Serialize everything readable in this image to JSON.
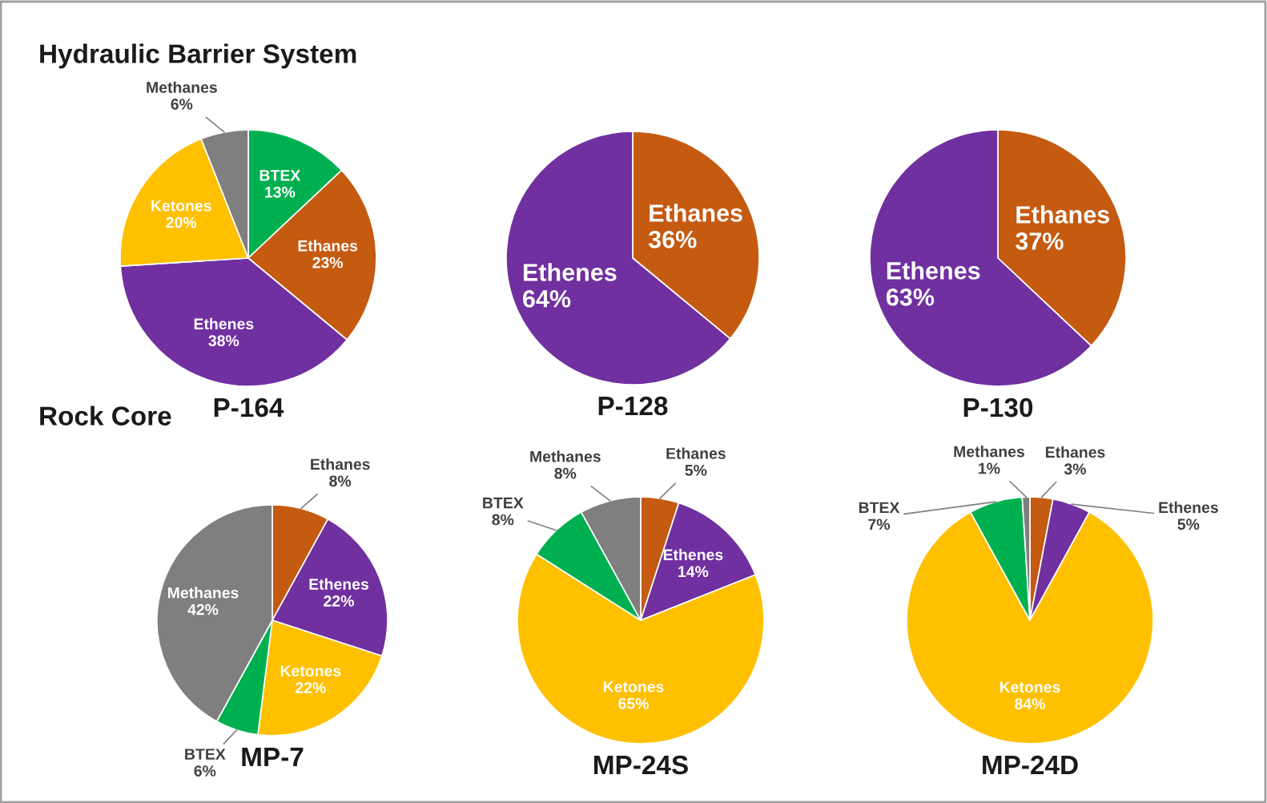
{
  "chart_data": [
    {
      "type": "pie",
      "title": "P-164",
      "categories": [
        "BTEX",
        "Ethanes",
        "Ethenes",
        "Ketones",
        "Methanes"
      ],
      "values": [
        13,
        23,
        38,
        20,
        6
      ],
      "colors": [
        "#00b050",
        "#c55a11",
        "#7030a0",
        "#ffc000",
        "#7f7f7f"
      ],
      "value_labels": [
        "13%",
        "23%",
        "38%",
        "20%",
        "6%"
      ],
      "annotations": [
        "Hydraulic Barrier System"
      ]
    },
    {
      "type": "pie",
      "title": "P-128",
      "categories": [
        "Ethanes",
        "Ethenes"
      ],
      "values": [
        36,
        64
      ],
      "colors": [
        "#c55a11",
        "#7030a0"
      ],
      "value_labels": [
        "36%",
        "64%"
      ]
    },
    {
      "type": "pie",
      "title": "P-130",
      "categories": [
        "Ethanes",
        "Ethenes"
      ],
      "values": [
        37,
        63
      ],
      "colors": [
        "#c55a11",
        "#7030a0"
      ],
      "value_labels": [
        "37%",
        "63%"
      ]
    },
    {
      "type": "pie",
      "title": "MP-7",
      "categories": [
        "Ethanes",
        "Ethenes",
        "Ketones",
        "BTEX",
        "Methanes"
      ],
      "values": [
        8,
        22,
        22,
        6,
        42
      ],
      "colors": [
        "#c55a11",
        "#7030a0",
        "#ffc000",
        "#00b050",
        "#7f7f7f"
      ],
      "value_labels": [
        "8%",
        "22%",
        "22%",
        "6%",
        "42%"
      ],
      "annotations": [
        "Rock Core"
      ]
    },
    {
      "type": "pie",
      "title": "MP-24S",
      "categories": [
        "Ethanes",
        "Ethenes",
        "Ketones",
        "BTEX",
        "Methanes"
      ],
      "values": [
        5,
        14,
        65,
        8,
        8
      ],
      "colors": [
        "#c55a11",
        "#7030a0",
        "#ffc000",
        "#00b050",
        "#7f7f7f"
      ],
      "value_labels": [
        "5%",
        "14%",
        "65%",
        "8%",
        "8%"
      ]
    },
    {
      "type": "pie",
      "title": "MP-24D",
      "categories": [
        "Ethanes",
        "Ethenes",
        "Ketones",
        "BTEX",
        "Methanes"
      ],
      "values": [
        3,
        5,
        84,
        7,
        1
      ],
      "colors": [
        "#c55a11",
        "#7030a0",
        "#ffc000",
        "#00b050",
        "#7f7f7f"
      ],
      "value_labels": [
        "3%",
        "5%",
        "84%",
        "7%",
        "1%"
      ]
    }
  ]
}
